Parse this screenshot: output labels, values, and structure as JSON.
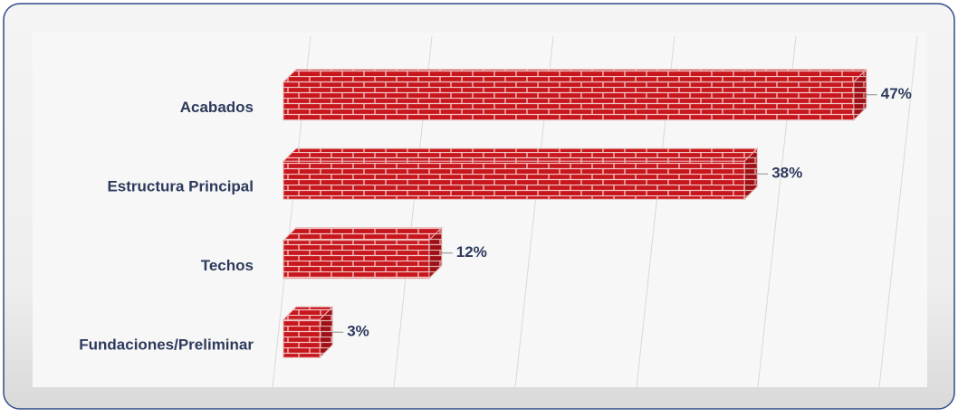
{
  "chart_data": {
    "type": "bar",
    "orientation": "horizontal",
    "categories": [
      "Acabados",
      "Estructura Principal",
      "Techos",
      "Fundaciones/Preliminar"
    ],
    "values": [
      47,
      38,
      12,
      3
    ],
    "value_labels": [
      "47%",
      "38%",
      "12%",
      "3%"
    ],
    "color": "#c0161c",
    "xlim": [
      0,
      50
    ],
    "xticks": [
      0,
      10,
      20,
      30,
      40,
      50
    ],
    "grid": true
  }
}
